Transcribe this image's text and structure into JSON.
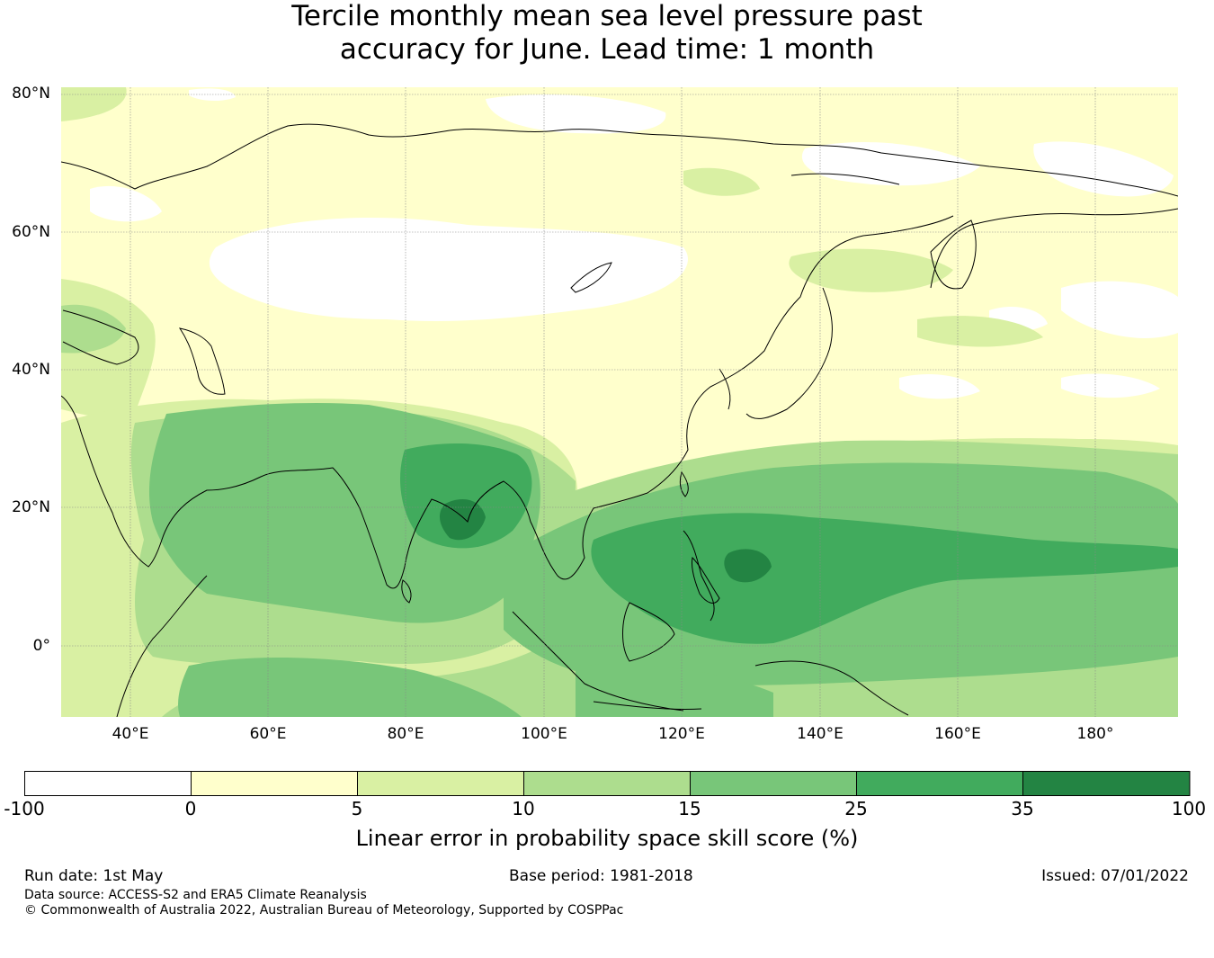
{
  "title": {
    "line1": "Tercile monthly mean sea level pressure past",
    "line2": "accuracy for June. Lead time: 1 month"
  },
  "map": {
    "lat_ticks": [
      "80°N",
      "60°N",
      "40°N",
      "20°N",
      "0°"
    ],
    "lon_ticks": [
      "40°E",
      "60°E",
      "80°E",
      "100°E",
      "120°E",
      "140°E",
      "160°E",
      "180°"
    ]
  },
  "colorbar": {
    "ticks": [
      "-100",
      "0",
      "5",
      "10",
      "15",
      "25",
      "35",
      "100"
    ],
    "colors": [
      "#ffffff",
      "#ffffcc",
      "#d9f0a3",
      "#addd8e",
      "#78c679",
      "#41ab5d",
      "#238443"
    ],
    "label": "Linear error in probability space skill score (%)"
  },
  "footer": {
    "run_date": "Run date: 1st May",
    "base_period": "Base period: 1981-2018",
    "issued": "Issued: 07/01/2022",
    "data_source": "Data source: ACCESS-S2 and ERA5 Climate Reanalysis",
    "copyright": "© Commonwealth of Australia 2022, Australian Bureau of Meteorology, Supported by COSPPac"
  }
}
